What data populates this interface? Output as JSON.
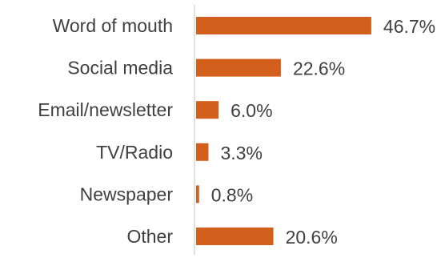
{
  "chart_data": {
    "type": "bar",
    "orientation": "horizontal",
    "categories": [
      "Word of mouth",
      "Social media",
      "Email/newsletter",
      "TV/Radio",
      "Newspaper",
      "Other"
    ],
    "values": [
      46.7,
      22.6,
      6.0,
      3.3,
      0.8,
      20.6
    ],
    "data_labels": [
      "46.7%",
      "22.6%",
      "6.0%",
      "3.3%",
      "0.8%",
      "20.6%"
    ],
    "xlim": [
      0,
      48
    ],
    "bar_color": "#D35F1C",
    "axis_color": "#D9D9D9",
    "text_color": "#404040",
    "grid": false,
    "legend": "none"
  }
}
